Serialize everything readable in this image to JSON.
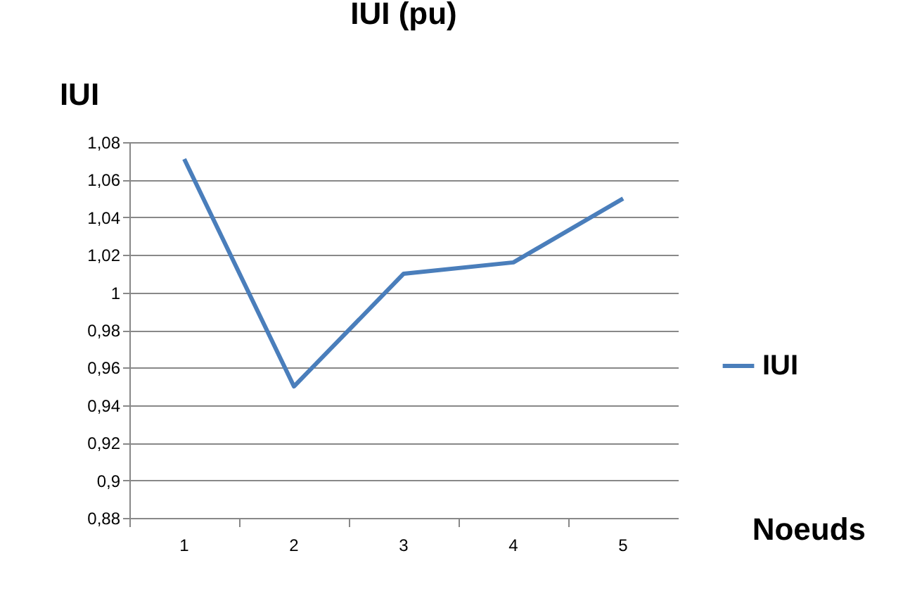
{
  "chart_data": {
    "type": "line",
    "title": "IUI (pu)",
    "xlabel": "Noeuds",
    "ylabel": "IUI",
    "categories": [
      "1",
      "2",
      "3",
      "4",
      "5"
    ],
    "series": [
      {
        "name": "IUI",
        "color": "#4a7ebb",
        "values": [
          1.071,
          0.95,
          1.01,
          1.016,
          1.05
        ]
      }
    ],
    "ylim": [
      0.88,
      1.08
    ],
    "yticks": [
      {
        "value": 0.88,
        "label": "0,88"
      },
      {
        "value": 0.9,
        "label": "0,9"
      },
      {
        "value": 0.92,
        "label": "0,92"
      },
      {
        "value": 0.94,
        "label": "0,94"
      },
      {
        "value": 0.96,
        "label": "0,96"
      },
      {
        "value": 0.98,
        "label": "0,98"
      },
      {
        "value": 1,
        "label": "1"
      },
      {
        "value": 1.02,
        "label": "1,02"
      },
      {
        "value": 1.04,
        "label": "1,04"
      },
      {
        "value": 1.06,
        "label": "1,06"
      },
      {
        "value": 1.08,
        "label": "1,08"
      }
    ],
    "grid": "y",
    "legend": "right",
    "marker": "none",
    "line_style": "solid"
  }
}
